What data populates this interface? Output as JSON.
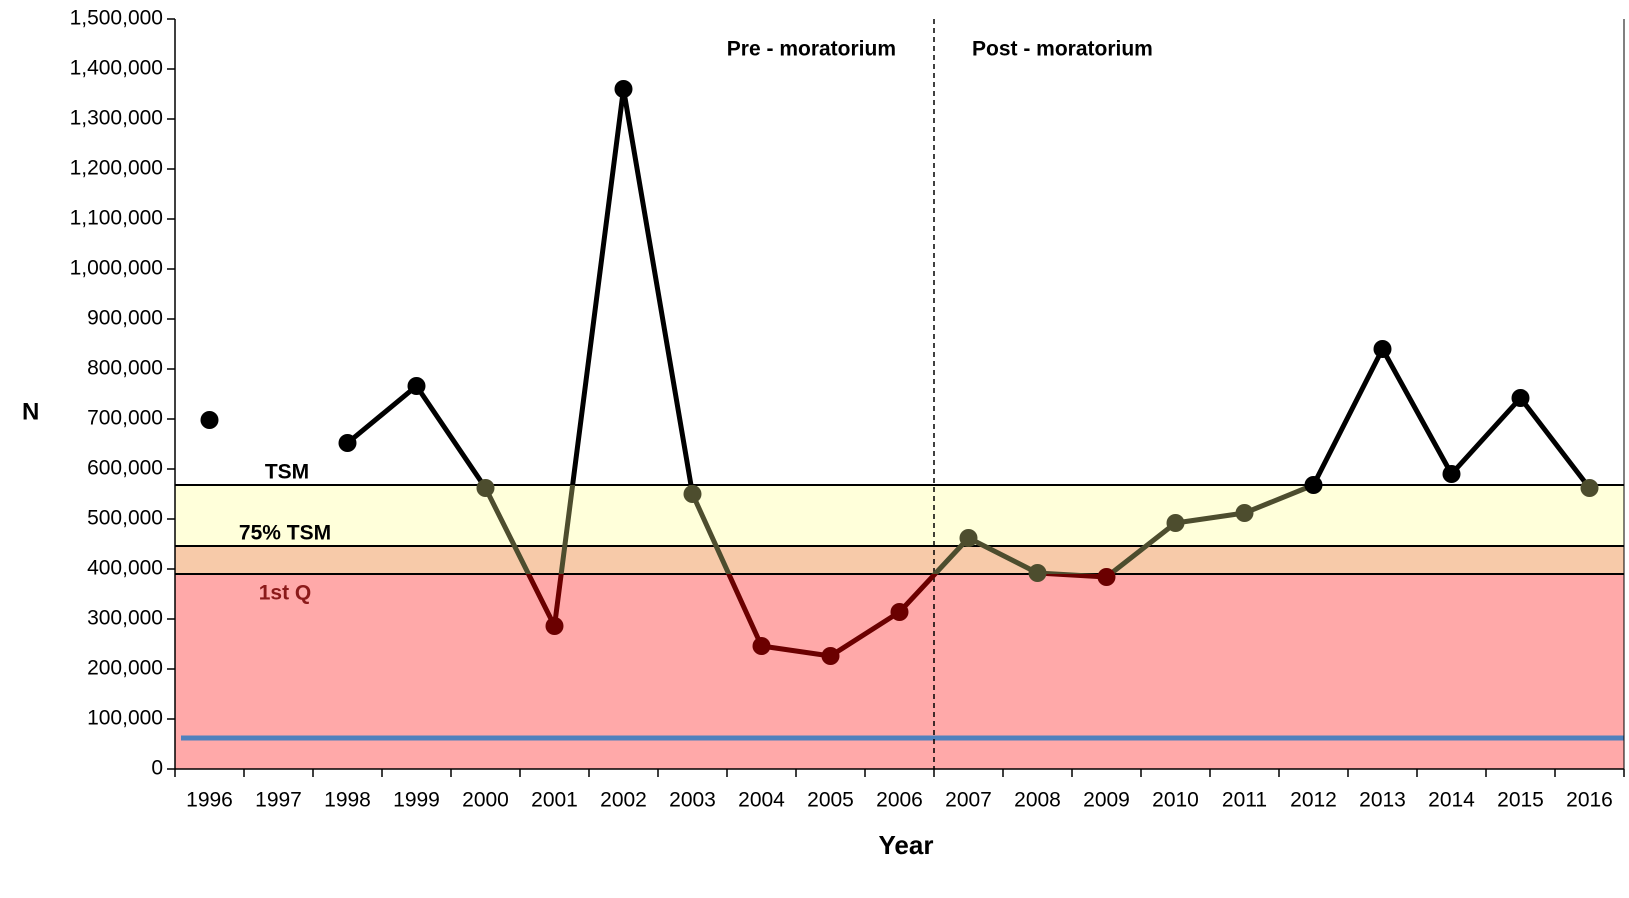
{
  "chart_data": {
    "type": "line",
    "xlabel": "Year",
    "ylabel": "N",
    "categories": [
      "1996",
      "1997",
      "1998",
      "1999",
      "2000",
      "2001",
      "2002",
      "2003",
      "2004",
      "2005",
      "2006",
      "2007",
      "2008",
      "2009",
      "2010",
      "2011",
      "2012",
      "2013",
      "2014",
      "2015",
      "2016"
    ],
    "series": [
      {
        "name": "N",
        "color": "#000000",
        "band_color": "#4d4d2e",
        "low_color": "#6b0000",
        "values": [
          698000,
          null,
          652000,
          766000,
          562000,
          286000,
          1360000,
          550000,
          246000,
          226000,
          314000,
          462000,
          392000,
          384000,
          492000,
          512000,
          568000,
          840000,
          590000,
          742000,
          562000
        ]
      }
    ],
    "ylim": [
      0,
      1500000
    ],
    "yticks": [
      {
        "value": 0,
        "label": "0"
      },
      {
        "value": 100000,
        "label": "100,000"
      },
      {
        "value": 200000,
        "label": "200,000"
      },
      {
        "value": 300000,
        "label": "300,000"
      },
      {
        "value": 400000,
        "label": "400,000"
      },
      {
        "value": 500000,
        "label": "500,000"
      },
      {
        "value": 600000,
        "label": "600,000"
      },
      {
        "value": 700000,
        "label": "700,000"
      },
      {
        "value": 800000,
        "label": "800,000"
      },
      {
        "value": 900000,
        "label": "900,000"
      },
      {
        "value": 1000000,
        "label": "1,000,000"
      },
      {
        "value": 1100000,
        "label": "1,100,000"
      },
      {
        "value": 1200000,
        "label": "1,200,000"
      },
      {
        "value": 1300000,
        "label": "1,300,000"
      },
      {
        "value": 1400000,
        "label": "1,400,000"
      },
      {
        "value": 1500000,
        "label": "1,500,000"
      }
    ],
    "thresholds": [
      {
        "label": "TSM",
        "value": 568000,
        "color": "#ffffda",
        "label_color": "#000000"
      },
      {
        "label": "75% TSM",
        "value": 446000,
        "color": "#f7caa9",
        "label_color": "#000000"
      },
      {
        "label": "1st Q",
        "value": 390000,
        "color": "#ffa9a9",
        "label_color": "#8b1a1a"
      }
    ],
    "reference_line": {
      "value": 62000,
      "color": "#4f81bd"
    },
    "divider_after": "2006",
    "annotations": [
      "Pre - moratorium",
      "Post - moratorium"
    ]
  }
}
